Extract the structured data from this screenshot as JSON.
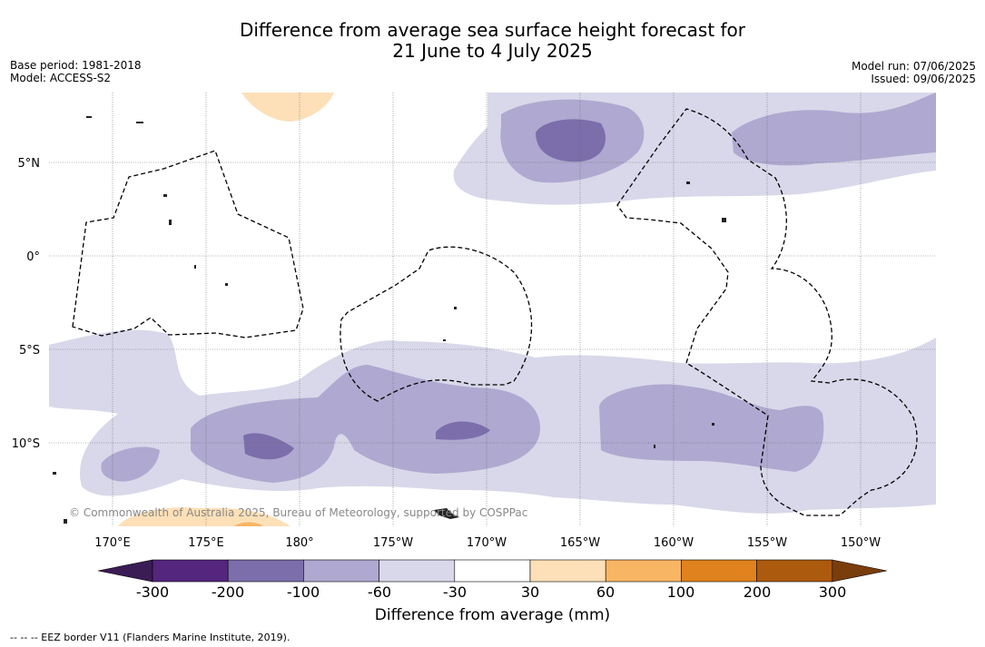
{
  "title": "Difference from average sea surface height forecast for\n21 June to 4 July 2025",
  "meta_left": {
    "base_period": "Base period: 1981-2018",
    "model": "Model: ACCESS-S2"
  },
  "meta_right": {
    "model_run": "Model run: 07/06/2025",
    "issued": "Issued: 09/06/2025"
  },
  "map": {
    "lat_labels": [
      "5°N",
      "0°",
      "5°S",
      "10°S"
    ],
    "lon_labels": [
      "170°E",
      "175°E",
      "180°",
      "175°W",
      "170°W",
      "165°W",
      "160°W",
      "155°W",
      "150°W"
    ],
    "copyright": "© Commonwealth of Australia 2025, Bureau of Meteorology, supported by COSPPac"
  },
  "colorbar": {
    "ticks": [
      "-300",
      "-200",
      "-100",
      "-60",
      "-30",
      "30",
      "60",
      "100",
      "200",
      "300"
    ],
    "colors": [
      "#3b1c55",
      "#54267e",
      "#7c6eab",
      "#afa8d0",
      "#d8d8ea",
      "#ffffff",
      "#fde0b8",
      "#f8b564",
      "#e0821d",
      "#ac5a0e",
      "#7a3d0c"
    ],
    "label": "Difference from average (mm)"
  },
  "footer": "--  --  -- EEZ border V11 (Flanders Marine Institute, 2019)."
}
